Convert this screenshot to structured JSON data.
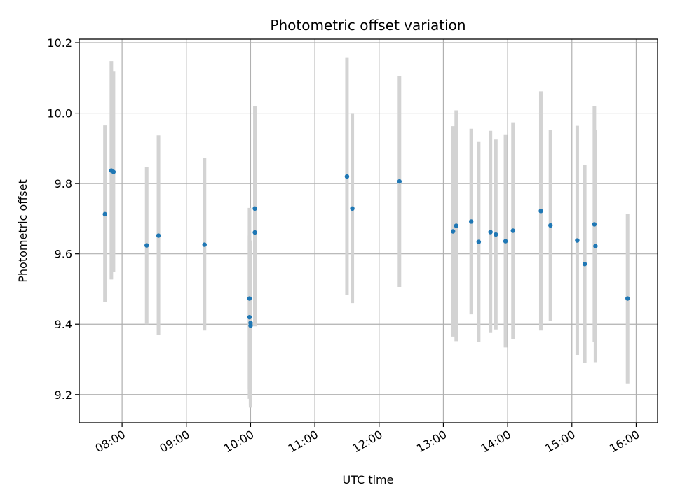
{
  "chart_data": {
    "type": "scatter",
    "title": "Photometric offset variation",
    "xlabel": "UTC time",
    "ylabel": "Photometric offset",
    "x_ticks": [
      "08:00",
      "09:00",
      "10:00",
      "11:00",
      "12:00",
      "13:00",
      "14:00",
      "15:00",
      "16:00"
    ],
    "y_ticks": [
      "9.2",
      "9.4",
      "9.6",
      "9.8",
      "10.0",
      "10.2"
    ],
    "xlim": [
      "07:20",
      "16:20"
    ],
    "ylim": [
      9.12,
      10.21
    ],
    "grid": true,
    "point_color": "#1f77b4",
    "errorbar_color": "#d3d3d3",
    "points": [
      {
        "x": "07:44",
        "y": 9.713,
        "lo": 9.462,
        "hi": 9.965
      },
      {
        "x": "07:50",
        "y": 9.837,
        "lo": 9.527,
        "hi": 10.148
      },
      {
        "x": "07:52",
        "y": 9.833,
        "lo": 9.548,
        "hi": 10.118
      },
      {
        "x": "08:23",
        "y": 9.624,
        "lo": 9.4,
        "hi": 9.848
      },
      {
        "x": "08:34",
        "y": 9.652,
        "lo": 9.37,
        "hi": 9.937
      },
      {
        "x": "09:17",
        "y": 9.626,
        "lo": 9.382,
        "hi": 9.872
      },
      {
        "x": "09:59",
        "y": 9.473,
        "lo": 9.215,
        "hi": 9.731
      },
      {
        "x": "09:59",
        "y": 9.42,
        "lo": 9.188,
        "hi": 9.652
      },
      {
        "x": "10:00",
        "y": 9.404,
        "lo": 9.17,
        "hi": 9.638
      },
      {
        "x": "10:00",
        "y": 9.396,
        "lo": 9.163,
        "hi": 9.629
      },
      {
        "x": "10:04",
        "y": 9.729,
        "lo": 9.438,
        "hi": 10.02
      },
      {
        "x": "10:04",
        "y": 9.661,
        "lo": 9.394,
        "hi": 9.928
      },
      {
        "x": "11:30",
        "y": 9.82,
        "lo": 9.484,
        "hi": 10.157
      },
      {
        "x": "11:35",
        "y": 9.729,
        "lo": 9.46,
        "hi": 9.998
      },
      {
        "x": "12:19",
        "y": 9.806,
        "lo": 9.506,
        "hi": 10.106
      },
      {
        "x": "13:09",
        "y": 9.664,
        "lo": 9.365,
        "hi": 9.963
      },
      {
        "x": "13:12",
        "y": 9.68,
        "lo": 9.352,
        "hi": 10.008
      },
      {
        "x": "13:26",
        "y": 9.692,
        "lo": 9.428,
        "hi": 9.956
      },
      {
        "x": "13:33",
        "y": 9.634,
        "lo": 9.35,
        "hi": 9.918
      },
      {
        "x": "13:44",
        "y": 9.662,
        "lo": 9.375,
        "hi": 9.95
      },
      {
        "x": "13:49",
        "y": 9.655,
        "lo": 9.385,
        "hi": 9.925
      },
      {
        "x": "13:58",
        "y": 9.636,
        "lo": 9.334,
        "hi": 9.938
      },
      {
        "x": "14:05",
        "y": 9.666,
        "lo": 9.358,
        "hi": 9.974
      },
      {
        "x": "14:31",
        "y": 9.722,
        "lo": 9.382,
        "hi": 10.062
      },
      {
        "x": "14:40",
        "y": 9.681,
        "lo": 9.409,
        "hi": 9.953
      },
      {
        "x": "15:05",
        "y": 9.638,
        "lo": 9.313,
        "hi": 9.964
      },
      {
        "x": "15:12",
        "y": 9.571,
        "lo": 9.289,
        "hi": 9.853
      },
      {
        "x": "15:21",
        "y": 9.684,
        "lo": 9.35,
        "hi": 10.02
      },
      {
        "x": "15:22",
        "y": 9.622,
        "lo": 9.292,
        "hi": 9.953
      },
      {
        "x": "15:52",
        "y": 9.473,
        "lo": 9.232,
        "hi": 9.714
      }
    ]
  }
}
